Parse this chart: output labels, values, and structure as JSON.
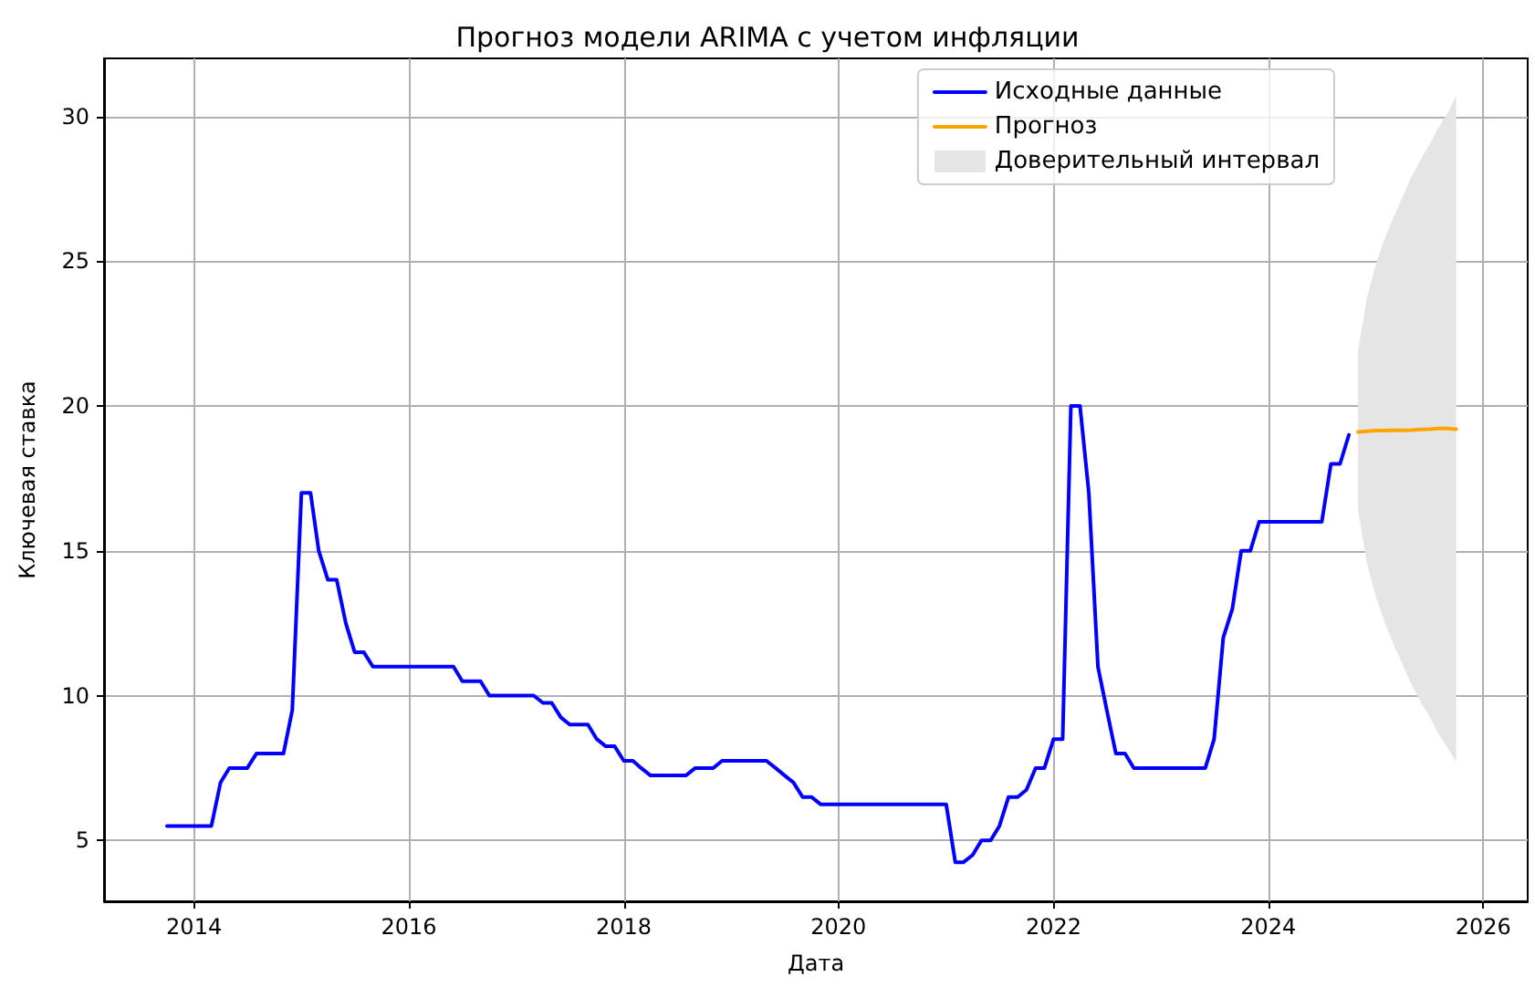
{
  "chart_data": {
    "type": "line",
    "title": "Прогноз модели ARIMA с учетом инфляции",
    "xlabel": "Дата",
    "ylabel": "Ключевая ставка",
    "xlim": [
      "2013-03",
      "2026-06"
    ],
    "xticks": [
      "2014",
      "2016",
      "2018",
      "2020",
      "2022",
      "2024",
      "2026"
    ],
    "ylim": [
      2.9,
      32
    ],
    "yticks": [
      5,
      10,
      15,
      20,
      25,
      30
    ],
    "grid": true,
    "legend": "top right",
    "marker": "none",
    "line_style": "solid",
    "series": [
      {
        "name": "Исходные данные",
        "color": "#0000ff",
        "x": [
          "2013-10",
          "2014-03",
          "2014-04",
          "2014-05",
          "2014-07",
          "2014-08",
          "2014-11",
          "2014-12",
          "2015-01",
          "2015-02",
          "2015-03",
          "2015-04",
          "2015-05",
          "2015-06",
          "2015-07",
          "2015-08",
          "2015-09",
          "2016-06",
          "2016-07",
          "2016-09",
          "2016-10",
          "2017-03",
          "2017-04",
          "2017-05",
          "2017-06",
          "2017-07",
          "2017-09",
          "2017-10",
          "2017-11",
          "2017-12",
          "2018-01",
          "2018-02",
          "2018-03",
          "2018-04",
          "2018-08",
          "2018-09",
          "2018-11",
          "2018-12",
          "2019-05",
          "2019-06",
          "2019-07",
          "2019-08",
          "2019-09",
          "2019-10",
          "2019-11",
          "2021-01",
          "2021-02",
          "2021-03",
          "2021-04",
          "2021-05",
          "2021-06",
          "2021-07",
          "2021-08",
          "2021-09",
          "2021-10",
          "2021-11",
          "2021-12",
          "2022-01",
          "2022-02",
          "2022-03",
          "2022-04",
          "2022-05",
          "2022-06",
          "2022-07",
          "2022-08",
          "2022-09",
          "2022-10",
          "2023-06",
          "2023-07",
          "2023-08",
          "2023-09",
          "2023-10",
          "2023-11",
          "2023-12",
          "2024-07",
          "2024-08",
          "2024-09",
          "2024-10"
        ],
        "values": [
          5.5,
          5.5,
          7,
          7.5,
          7.5,
          8,
          8,
          9.5,
          17,
          17,
          15,
          14,
          14,
          12.5,
          11.5,
          11.5,
          11,
          11,
          10.5,
          10.5,
          10,
          10,
          9.75,
          9.75,
          9.25,
          9,
          9,
          8.5,
          8.25,
          8.25,
          7.75,
          7.75,
          7.5,
          7.25,
          7.25,
          7.5,
          7.5,
          7.75,
          7.75,
          7.5,
          7.25,
          7,
          6.5,
          6.5,
          6.25,
          6.25,
          4.25,
          4.25,
          4.5,
          5,
          5,
          5.5,
          6.5,
          6.5,
          6.75,
          7.5,
          7.5,
          8.5,
          8.5,
          20,
          20,
          17,
          11,
          9.5,
          8,
          8,
          7.5,
          7.5,
          8.5,
          12,
          13,
          15,
          15,
          16,
          16,
          18,
          18,
          19
        ]
      },
      {
        "name": "Прогноз",
        "color": "#ffa500",
        "x": [
          "2024-11",
          "2024-12",
          "2025-01",
          "2025-02",
          "2025-03",
          "2025-04",
          "2025-05",
          "2025-06",
          "2025-07",
          "2025-08",
          "2025-09",
          "2025-10"
        ],
        "values": [
          19.1,
          19.13,
          19.15,
          19.15,
          19.16,
          19.16,
          19.17,
          19.19,
          19.2,
          19.22,
          19.22,
          19.2
        ],
        "lower": [
          16.4,
          14.6,
          13.4,
          12.5,
          11.8,
          11.1,
          10.4,
          9.8,
          9.3,
          8.7,
          8.2,
          7.7
        ],
        "upper": [
          21.9,
          23.7,
          24.9,
          25.8,
          26.5,
          27.2,
          27.9,
          28.5,
          29.0,
          29.6,
          30.1,
          30.7
        ]
      },
      {
        "name": "Доверительный интервал",
        "type": "area",
        "color": "#e5e5e5"
      }
    ]
  }
}
